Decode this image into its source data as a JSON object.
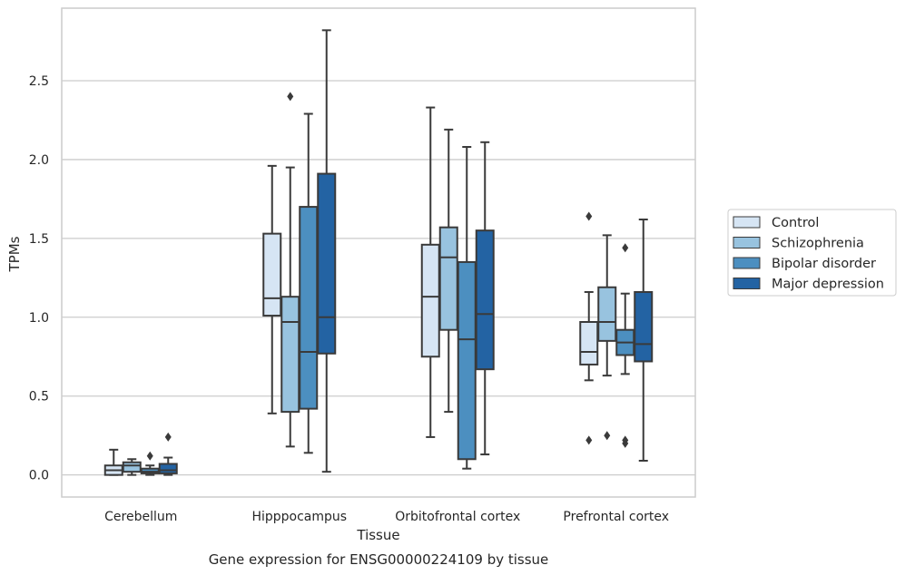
{
  "chart_data": {
    "type": "boxplot",
    "caption": "Gene expression for ENSG00000224109 by tissue",
    "xlabel": "Tissue",
    "ylabel": "TPMs",
    "ylim": [
      -0.14,
      2.96
    ],
    "yticks": [
      0.0,
      0.5,
      1.0,
      1.5,
      2.0,
      2.5
    ],
    "ytick_labels": [
      "0.0",
      "0.5",
      "1.0",
      "1.5",
      "2.0",
      "2.5"
    ],
    "grid": "horizontal",
    "legend_position": "right",
    "categories": [
      "Cerebellum",
      "Hipppocampus",
      "Orbitofrontal cortex",
      "Prefrontal cortex"
    ],
    "series": [
      {
        "name": "Control",
        "color": "#d6e5f4",
        "boxes": [
          {
            "whislo": 0.0,
            "q1": 0.0,
            "med": 0.03,
            "q3": 0.06,
            "whishi": 0.16,
            "fliers": []
          },
          {
            "whislo": 0.39,
            "q1": 1.01,
            "med": 1.12,
            "q3": 1.53,
            "whishi": 1.96,
            "fliers": []
          },
          {
            "whislo": 0.24,
            "q1": 0.75,
            "med": 1.13,
            "q3": 1.46,
            "whishi": 2.33,
            "fliers": []
          },
          {
            "whislo": 0.6,
            "q1": 0.7,
            "med": 0.78,
            "q3": 0.97,
            "whishi": 1.16,
            "fliers": [
              0.22,
              1.64
            ]
          }
        ]
      },
      {
        "name": "Schizophrenia",
        "color": "#98c3df",
        "boxes": [
          {
            "whislo": 0.0,
            "q1": 0.02,
            "med": 0.06,
            "q3": 0.08,
            "whishi": 0.1,
            "fliers": []
          },
          {
            "whislo": 0.18,
            "q1": 0.4,
            "med": 0.97,
            "q3": 1.13,
            "whishi": 1.95,
            "fliers": [
              2.4
            ]
          },
          {
            "whislo": 0.4,
            "q1": 0.92,
            "med": 1.38,
            "q3": 1.57,
            "whishi": 2.19,
            "fliers": []
          },
          {
            "whislo": 0.63,
            "q1": 0.85,
            "med": 0.97,
            "q3": 1.19,
            "whishi": 1.52,
            "fliers": [
              0.25
            ]
          }
        ]
      },
      {
        "name": "Bipolar disorder",
        "color": "#4c8fc0",
        "boxes": [
          {
            "whislo": 0.0,
            "q1": 0.01,
            "med": 0.02,
            "q3": 0.04,
            "whishi": 0.06,
            "fliers": [
              0.12
            ]
          },
          {
            "whislo": 0.14,
            "q1": 0.42,
            "med": 0.78,
            "q3": 1.7,
            "whishi": 2.29,
            "fliers": []
          },
          {
            "whislo": 0.04,
            "q1": 0.1,
            "med": 0.86,
            "q3": 1.35,
            "whishi": 2.08,
            "fliers": []
          },
          {
            "whislo": 0.64,
            "q1": 0.76,
            "med": 0.84,
            "q3": 0.92,
            "whishi": 1.15,
            "fliers": [
              0.2,
              0.22,
              1.44
            ]
          }
        ]
      },
      {
        "name": "Major depression",
        "color": "#2363a3",
        "boxes": [
          {
            "whislo": 0.0,
            "q1": 0.01,
            "med": 0.03,
            "q3": 0.07,
            "whishi": 0.11,
            "fliers": [
              0.24
            ]
          },
          {
            "whislo": 0.02,
            "q1": 0.77,
            "med": 1.0,
            "q3": 1.91,
            "whishi": 2.82,
            "fliers": []
          },
          {
            "whislo": 0.13,
            "q1": 0.67,
            "med": 1.02,
            "q3": 1.55,
            "whishi": 2.11,
            "fliers": []
          },
          {
            "whislo": 0.09,
            "q1": 0.72,
            "med": 0.83,
            "q3": 1.16,
            "whishi": 1.62,
            "fliers": []
          }
        ]
      }
    ]
  }
}
